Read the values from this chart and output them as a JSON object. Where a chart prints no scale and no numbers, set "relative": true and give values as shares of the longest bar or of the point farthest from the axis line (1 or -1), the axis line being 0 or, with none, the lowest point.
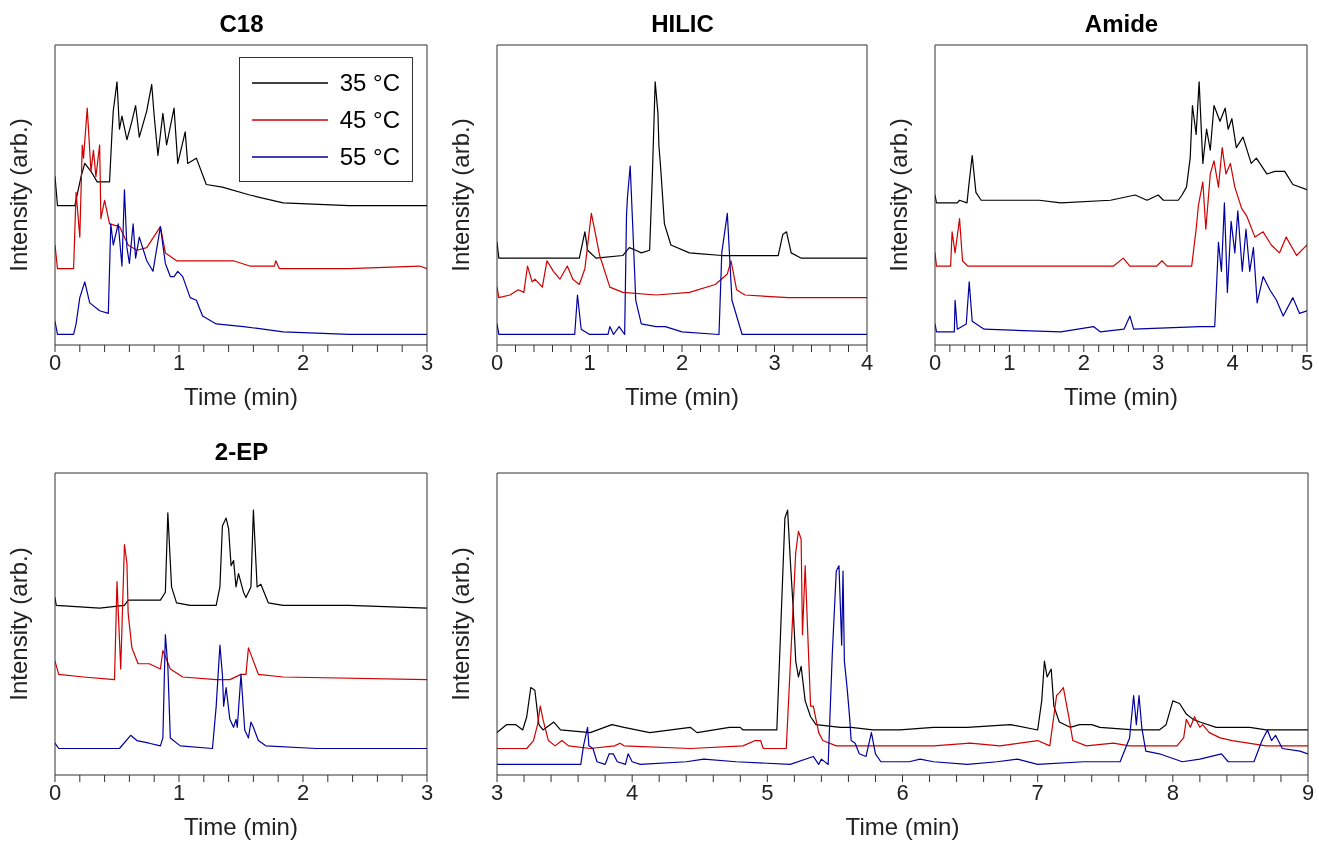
{
  "chart_data": [
    {
      "type": "line",
      "title": "C18",
      "xlabel": "Time (min)",
      "ylabel": "Intensity (arb.)",
      "relative": true,
      "tick_labels": "x",
      "legend": "top right",
      "xlim": [
        0,
        3
      ],
      "xticks": [
        0,
        {
          "value": 0.2,
          "label": null
        },
        {
          "value": 0.4,
          "label": null
        },
        {
          "value": 0.6,
          "label": null
        },
        {
          "value": 0.8,
          "label": null
        },
        1,
        {
          "value": 1.2,
          "label": null
        },
        {
          "value": 1.4,
          "label": null
        },
        {
          "value": 1.6,
          "label": null
        },
        {
          "value": 1.8,
          "label": null
        },
        2,
        {
          "value": 2.2,
          "label": null
        },
        {
          "value": 2.4,
          "label": null
        },
        {
          "value": 2.6,
          "label": null
        },
        {
          "value": 2.8,
          "label": null
        },
        3
      ],
      "series": [
        {
          "name": "35 °C",
          "color": "#000000",
          "x": [
            0,
            0.02,
            0.16,
            0.21,
            0.24,
            0.29,
            0.34,
            0.4,
            0.44,
            0.46,
            0.47,
            0.5,
            0.52,
            0.54,
            0.58,
            0.62,
            0.65,
            0.68,
            0.74,
            0.78,
            0.8,
            0.83,
            0.87,
            0.9,
            0.96,
            0.99,
            1.05,
            1.07,
            1.14,
            1.22,
            1.35,
            1.57,
            1.84,
            2.37,
            3.0
          ],
          "values": [
            0.64,
            0.53,
            0.53,
            0.64,
            0.69,
            0.66,
            0.62,
            0.62,
            0.62,
            0.81,
            0.89,
            1,
            0.82,
            0.87,
            0.78,
            0.85,
            0.91,
            0.79,
            0.89,
            0.99,
            0.87,
            0.72,
            0.88,
            0.76,
            0.9,
            0.69,
            0.81,
            0.69,
            0.71,
            0.61,
            0.6,
            0.57,
            0.54,
            0.53,
            0.53
          ]
        },
        {
          "name": "45 °C",
          "color": "#d00000",
          "x": [
            0,
            0.02,
            0.15,
            0.17,
            0.2,
            0.22,
            0.23,
            0.26,
            0.29,
            0.31,
            0.33,
            0.36,
            0.37,
            0.4,
            0.44,
            0.52,
            0.59,
            0.66,
            0.74,
            0.85,
            0.89,
            0.98,
            1.17,
            1.44,
            1.57,
            1.77,
            1.78,
            1.81,
            2.37,
            2.94,
            3.0
          ],
          "values": [
            0.38,
            0.29,
            0.29,
            0.58,
            0.41,
            0.76,
            0.71,
            0.9,
            0.66,
            0.74,
            0.64,
            0.76,
            0.48,
            0.55,
            0.46,
            0.45,
            0.38,
            0.36,
            0.37,
            0.45,
            0.35,
            0.32,
            0.32,
            0.32,
            0.3,
            0.3,
            0.32,
            0.29,
            0.29,
            0.3,
            0.29
          ]
        },
        {
          "name": "55 °C",
          "color": "#0000a0",
          "x": [
            0,
            0.02,
            0.15,
            0.17,
            0.2,
            0.24,
            0.28,
            0.36,
            0.43,
            0.45,
            0.47,
            0.51,
            0.54,
            0.56,
            0.58,
            0.6,
            0.63,
            0.65,
            0.68,
            0.74,
            0.79,
            0.85,
            0.89,
            0.93,
            0.96,
            0.99,
            1.03,
            1.09,
            1.14,
            1.19,
            1.3,
            1.52,
            1.84,
            2.37,
            3.0
          ],
          "values": [
            0.09,
            0.04,
            0.04,
            0.08,
            0.18,
            0.24,
            0.16,
            0.13,
            0.12,
            0.46,
            0.38,
            0.46,
            0.3,
            0.59,
            0.37,
            0.31,
            0.46,
            0.33,
            0.41,
            0.32,
            0.28,
            0.45,
            0.31,
            0.26,
            0.26,
            0.28,
            0.26,
            0.18,
            0.17,
            0.11,
            0.08,
            0.07,
            0.05,
            0.04,
            0.04
          ]
        }
      ]
    },
    {
      "type": "line",
      "title": "HILIC",
      "xlabel": "Time (min)",
      "ylabel": "Intensity (arb.)",
      "relative": true,
      "tick_labels": "x",
      "xlim": [
        0,
        4
      ],
      "xticks": [
        0,
        {
          "value": 0.2,
          "label": null
        },
        {
          "value": 0.4,
          "label": null
        },
        {
          "value": 0.6,
          "label": null
        },
        {
          "value": 0.8,
          "label": null
        },
        1,
        {
          "value": 1.2,
          "label": null
        },
        {
          "value": 1.4,
          "label": null
        },
        {
          "value": 1.6,
          "label": null
        },
        {
          "value": 1.8,
          "label": null
        },
        2,
        {
          "value": 2.2,
          "label": null
        },
        {
          "value": 2.4,
          "label": null
        },
        {
          "value": 2.6,
          "label": null
        },
        {
          "value": 2.8,
          "label": null
        },
        3,
        {
          "value": 3.2,
          "label": null
        },
        {
          "value": 3.4,
          "label": null
        },
        {
          "value": 3.6,
          "label": null
        },
        {
          "value": 3.8,
          "label": null
        },
        4
      ],
      "series": [
        {
          "color": "#000000",
          "x": [
            0,
            0.02,
            0.89,
            0.95,
            0.98,
            1.07,
            1.36,
            1.43,
            1.5,
            1.56,
            1.65,
            1.68,
            1.71,
            1.74,
            1.75,
            1.77,
            1.81,
            1.88,
            2.08,
            2.43,
            2.79,
            3.04,
            3.09,
            3.13,
            3.18,
            3.29,
            4.0
          ],
          "values": [
            0.39,
            0.33,
            0.33,
            0.43,
            0.36,
            0.33,
            0.34,
            0.37,
            0.36,
            0.35,
            0.36,
            0.65,
            1,
            0.88,
            0.76,
            0.67,
            0.46,
            0.38,
            0.35,
            0.34,
            0.34,
            0.34,
            0.42,
            0.43,
            0.35,
            0.33,
            0.33
          ]
        },
        {
          "color": "#d00000",
          "x": [
            0,
            0.02,
            0.14,
            0.23,
            0.29,
            0.33,
            0.38,
            0.41,
            0.49,
            0.54,
            0.61,
            0.68,
            0.76,
            0.82,
            0.89,
            0.95,
            1.02,
            1.06,
            1.11,
            1.22,
            1.36,
            1.72,
            2.08,
            2.36,
            2.49,
            2.53,
            2.59,
            2.68,
            3.15,
            4.0
          ],
          "values": [
            0.22,
            0.18,
            0.19,
            0.21,
            0.2,
            0.3,
            0.24,
            0.25,
            0.22,
            0.32,
            0.28,
            0.25,
            0.3,
            0.25,
            0.23,
            0.29,
            0.5,
            0.43,
            0.34,
            0.22,
            0.2,
            0.19,
            0.2,
            0.23,
            0.27,
            0.32,
            0.21,
            0.19,
            0.18,
            0.18
          ]
        },
        {
          "color": "#0000a0",
          "x": [
            0,
            0.02,
            0.84,
            0.87,
            0.91,
            1.0,
            1.2,
            1.22,
            1.26,
            1.32,
            1.38,
            1.4,
            1.41,
            1.44,
            1.47,
            1.5,
            1.56,
            1.72,
            1.82,
            2.0,
            2.4,
            2.43,
            2.49,
            2.54,
            2.65,
            4.0
          ],
          "values": [
            0.08,
            0.04,
            0.04,
            0.19,
            0.06,
            0.04,
            0.04,
            0.07,
            0.04,
            0.07,
            0.04,
            0.49,
            0.56,
            0.68,
            0.43,
            0.17,
            0.08,
            0.07,
            0.07,
            0.05,
            0.04,
            0.35,
            0.5,
            0.17,
            0.04,
            0.04
          ]
        }
      ]
    },
    {
      "type": "line",
      "title": "Amide",
      "xlabel": "Time (min)",
      "ylabel": "Intensity (arb.)",
      "relative": true,
      "tick_labels": "x",
      "xlim": [
        0,
        5
      ],
      "xticks": [
        0,
        {
          "value": 0.2,
          "label": null
        },
        {
          "value": 0.4,
          "label": null
        },
        {
          "value": 0.6,
          "label": null
        },
        {
          "value": 0.8,
          "label": null
        },
        1,
        {
          "value": 1.2,
          "label": null
        },
        {
          "value": 1.4,
          "label": null
        },
        {
          "value": 1.6,
          "label": null
        },
        {
          "value": 1.8,
          "label": null
        },
        2,
        {
          "value": 2.2,
          "label": null
        },
        {
          "value": 2.4,
          "label": null
        },
        {
          "value": 2.6,
          "label": null
        },
        {
          "value": 2.8,
          "label": null
        },
        3,
        {
          "value": 3.2,
          "label": null
        },
        {
          "value": 3.4,
          "label": null
        },
        {
          "value": 3.6,
          "label": null
        },
        {
          "value": 3.8,
          "label": null
        },
        4,
        {
          "value": 4.2,
          "label": null
        },
        {
          "value": 4.4,
          "label": null
        },
        {
          "value": 4.6,
          "label": null
        },
        {
          "value": 4.8,
          "label": null
        },
        5
      ],
      "series": [
        {
          "color": "#000000",
          "x": [
            0,
            0.02,
            0.3,
            0.33,
            0.43,
            0.46,
            0.5,
            0.55,
            0.62,
            1.02,
            1.4,
            1.69,
            2.36,
            2.69,
            2.85,
            3.0,
            3.07,
            3.27,
            3.32,
            3.38,
            3.43,
            3.46,
            3.51,
            3.55,
            3.6,
            3.65,
            3.7,
            3.75,
            3.83,
            3.9,
            3.94,
            3.99,
            4.05,
            4.14,
            4.25,
            4.32,
            4.46,
            4.57,
            4.7,
            4.81,
            5.0
          ],
          "values": [
            0.57,
            0.54,
            0.54,
            0.55,
            0.54,
            0.62,
            0.72,
            0.58,
            0.55,
            0.55,
            0.55,
            0.54,
            0.55,
            0.57,
            0.55,
            0.57,
            0.55,
            0.55,
            0.57,
            0.6,
            0.71,
            0.91,
            0.8,
            1,
            0.69,
            0.82,
            0.74,
            0.91,
            0.85,
            0.9,
            0.82,
            0.86,
            0.75,
            0.79,
            0.69,
            0.71,
            0.65,
            0.66,
            0.66,
            0.61,
            0.59
          ]
        },
        {
          "color": "#d00000",
          "x": [
            0,
            0.02,
            0.21,
            0.23,
            0.27,
            0.33,
            0.37,
            0.44,
            1.24,
            2.4,
            2.53,
            2.62,
            2.98,
            3.05,
            3.12,
            3.45,
            3.51,
            3.54,
            3.6,
            3.64,
            3.7,
            3.75,
            3.81,
            3.86,
            3.91,
            3.97,
            4.03,
            4.12,
            4.19,
            4.3,
            4.41,
            4.52,
            4.63,
            4.72,
            4.86,
            5.0
          ],
          "values": [
            0.35,
            0.3,
            0.3,
            0.43,
            0.35,
            0.48,
            0.32,
            0.3,
            0.3,
            0.3,
            0.33,
            0.3,
            0.3,
            0.32,
            0.3,
            0.3,
            0.44,
            0.53,
            0.62,
            0.44,
            0.65,
            0.7,
            0.6,
            0.75,
            0.65,
            0.69,
            0.6,
            0.52,
            0.49,
            0.41,
            0.43,
            0.38,
            0.35,
            0.41,
            0.34,
            0.38
          ]
        },
        {
          "color": "#0000a0",
          "x": [
            0,
            0.02,
            0.26,
            0.27,
            0.3,
            0.42,
            0.46,
            0.5,
            0.66,
            1.69,
            2.13,
            2.22,
            2.54,
            2.62,
            2.67,
            3.56,
            3.76,
            3.81,
            3.85,
            3.89,
            3.93,
            3.98,
            4.03,
            4.07,
            4.13,
            4.18,
            4.23,
            4.28,
            4.33,
            4.41,
            4.5,
            4.59,
            4.68,
            4.81,
            4.9,
            5.0
          ],
          "values": [
            0.08,
            0.05,
            0.05,
            0.17,
            0.06,
            0.08,
            0.24,
            0.09,
            0.06,
            0.05,
            0.07,
            0.05,
            0.06,
            0.11,
            0.06,
            0.07,
            0.07,
            0.39,
            0.28,
            0.54,
            0.2,
            0.47,
            0.35,
            0.51,
            0.28,
            0.44,
            0.28,
            0.37,
            0.16,
            0.26,
            0.21,
            0.17,
            0.11,
            0.18,
            0.12,
            0.13
          ]
        }
      ]
    },
    {
      "type": "line",
      "title": "2-EP",
      "xlabel": "Time (min)",
      "ylabel": "Intensity (arb.)",
      "relative": true,
      "tick_labels": "x",
      "xlim": [
        0,
        3
      ],
      "xticks": [
        0,
        {
          "value": 0.2,
          "label": null
        },
        {
          "value": 0.4,
          "label": null
        },
        {
          "value": 0.6,
          "label": null
        },
        {
          "value": 0.8,
          "label": null
        },
        1,
        {
          "value": 1.2,
          "label": null
        },
        {
          "value": 1.4,
          "label": null
        },
        {
          "value": 1.6,
          "label": null
        },
        {
          "value": 1.8,
          "label": null
        },
        2,
        {
          "value": 2.2,
          "label": null
        },
        {
          "value": 2.4,
          "label": null
        },
        {
          "value": 2.6,
          "label": null
        },
        {
          "value": 2.8,
          "label": null
        },
        3
      ],
      "series": [
        {
          "color": "#000000",
          "x": [
            0,
            0.01,
            0.36,
            0.56,
            0.59,
            0.71,
            0.85,
            0.89,
            0.91,
            0.94,
            0.98,
            1.09,
            1.3,
            1.33,
            1.35,
            1.38,
            1.4,
            1.42,
            1.44,
            1.46,
            1.48,
            1.52,
            1.54,
            1.58,
            1.6,
            1.63,
            1.66,
            1.72,
            1.84,
            2.37,
            3.0
          ],
          "values": [
            0.67,
            0.64,
            0.63,
            0.64,
            0.66,
            0.66,
            0.66,
            0.69,
            0.99,
            0.71,
            0.65,
            0.64,
            0.64,
            0.71,
            0.94,
            0.97,
            0.93,
            0.79,
            0.81,
            0.71,
            0.76,
            0.69,
            0.67,
            0.71,
            1,
            0.71,
            0.72,
            0.65,
            0.64,
            0.64,
            0.63
          ]
        },
        {
          "color": "#d00000",
          "x": [
            0,
            0.03,
            0.23,
            0.48,
            0.5,
            0.53,
            0.56,
            0.58,
            0.59,
            0.62,
            0.67,
            0.76,
            0.85,
            0.87,
            0.93,
            1.03,
            1.3,
            1.41,
            1.5,
            1.54,
            1.56,
            1.6,
            1.64,
            1.84,
            3.0
          ],
          "values": [
            0.43,
            0.38,
            0.37,
            0.36,
            0.73,
            0.4,
            0.87,
            0.8,
            0.61,
            0.48,
            0.42,
            0.42,
            0.4,
            0.47,
            0.4,
            0.37,
            0.36,
            0.36,
            0.38,
            0.38,
            0.48,
            0.43,
            0.38,
            0.37,
            0.36
          ]
        },
        {
          "color": "#0000a0",
          "x": [
            0,
            0.03,
            0.52,
            0.61,
            0.66,
            0.76,
            0.85,
            0.87,
            0.89,
            0.91,
            0.93,
            1.01,
            1.27,
            1.3,
            1.33,
            1.35,
            1.36,
            1.38,
            1.41,
            1.44,
            1.46,
            1.47,
            1.5,
            1.53,
            1.56,
            1.58,
            1.6,
            1.64,
            1.7,
            2.11,
            3.0
          ],
          "values": [
            0.12,
            0.1,
            0.1,
            0.15,
            0.13,
            0.12,
            0.11,
            0.14,
            0.53,
            0.41,
            0.14,
            0.11,
            0.1,
            0.26,
            0.49,
            0.38,
            0.26,
            0.33,
            0.21,
            0.18,
            0.21,
            0.18,
            0.38,
            0.17,
            0.14,
            0.2,
            0.18,
            0.13,
            0.11,
            0.1,
            0.1
          ]
        }
      ]
    },
    {
      "type": "line",
      "xlabel": "Time (min)",
      "ylabel": "Intensity (arb.)",
      "relative": true,
      "tick_labels": "x",
      "xlim": [
        3,
        9
      ],
      "xticks": [
        3,
        {
          "value": 3.2,
          "label": null
        },
        {
          "value": 3.4,
          "label": null
        },
        {
          "value": 3.6,
          "label": null
        },
        {
          "value": 3.8,
          "label": null
        },
        4,
        {
          "value": 4.2,
          "label": null
        },
        {
          "value": 4.4,
          "label": null
        },
        {
          "value": 4.6,
          "label": null
        },
        {
          "value": 4.8,
          "label": null
        },
        5,
        {
          "value": 5.2,
          "label": null
        },
        {
          "value": 5.4,
          "label": null
        },
        {
          "value": 5.6,
          "label": null
        },
        {
          "value": 5.8,
          "label": null
        },
        6,
        {
          "value": 6.2,
          "label": null
        },
        {
          "value": 6.4,
          "label": null
        },
        {
          "value": 6.6,
          "label": null
        },
        {
          "value": 6.8,
          "label": null
        },
        7,
        {
          "value": 7.2,
          "label": null
        },
        {
          "value": 7.4,
          "label": null
        },
        {
          "value": 7.6,
          "label": null
        },
        {
          "value": 7.8,
          "label": null
        },
        8,
        {
          "value": 8.2,
          "label": null
        },
        {
          "value": 8.4,
          "label": null
        },
        {
          "value": 8.6,
          "label": null
        },
        {
          "value": 8.8,
          "label": null
        },
        9
      ],
      "series": [
        {
          "color": "#000000",
          "x": [
            3.0,
            3.07,
            3.14,
            3.19,
            3.22,
            3.25,
            3.28,
            3.31,
            3.34,
            3.42,
            3.47,
            3.69,
            3.85,
            3.94,
            4.13,
            4.43,
            4.48,
            4.72,
            4.8,
            4.82,
            5.07,
            5.09,
            5.13,
            5.15,
            5.17,
            5.19,
            5.21,
            5.23,
            5.25,
            5.28,
            5.32,
            5.36,
            5.54,
            5.62,
            5.78,
            5.98,
            6.23,
            6.48,
            6.8,
            7.0,
            7.03,
            7.05,
            7.07,
            7.1,
            7.12,
            7.16,
            7.24,
            7.31,
            7.4,
            7.46,
            7.71,
            7.9,
            7.95,
            8.0,
            8.05,
            8.1,
            8.15,
            8.2,
            8.32,
            8.57,
            8.69,
            9.0
          ],
          "values": [
            0.16,
            0.19,
            0.19,
            0.17,
            0.22,
            0.33,
            0.32,
            0.19,
            0.17,
            0.2,
            0.17,
            0.16,
            0.19,
            0.18,
            0.16,
            0.18,
            0.16,
            0.18,
            0.18,
            0.17,
            0.17,
            0.43,
            0.97,
            1,
            0.81,
            0.64,
            0.43,
            0.37,
            0.41,
            0.28,
            0.22,
            0.19,
            0.18,
            0.18,
            0.17,
            0.17,
            0.18,
            0.18,
            0.19,
            0.17,
            0.28,
            0.43,
            0.37,
            0.4,
            0.26,
            0.2,
            0.18,
            0.19,
            0.19,
            0.18,
            0.17,
            0.17,
            0.19,
            0.28,
            0.27,
            0.23,
            0.21,
            0.2,
            0.18,
            0.18,
            0.17,
            0.17
          ]
        },
        {
          "color": "#d00000",
          "x": [
            3.0,
            3.22,
            3.27,
            3.3,
            3.32,
            3.34,
            3.38,
            3.43,
            3.48,
            3.53,
            3.69,
            3.87,
            3.91,
            3.94,
            4.43,
            4.82,
            4.91,
            4.95,
            4.97,
            5.14,
            5.18,
            5.21,
            5.23,
            5.25,
            5.26,
            5.28,
            5.3,
            5.32,
            5.34,
            5.38,
            5.41,
            5.51,
            5.66,
            5.91,
            6.23,
            6.5,
            6.72,
            7.0,
            7.09,
            7.14,
            7.16,
            7.19,
            7.23,
            7.26,
            7.36,
            7.56,
            7.68,
            8.03,
            8.08,
            8.1,
            8.13,
            8.16,
            8.2,
            8.22,
            8.27,
            8.35,
            8.44,
            8.69,
            9.0
          ],
          "values": [
            0.1,
            0.1,
            0.13,
            0.19,
            0.26,
            0.21,
            0.13,
            0.11,
            0.13,
            0.11,
            0.1,
            0.11,
            0.12,
            0.11,
            0.1,
            0.11,
            0.13,
            0.13,
            0.1,
            0.1,
            0.52,
            0.84,
            0.92,
            0.89,
            0.53,
            0.79,
            0.52,
            0.26,
            0.26,
            0.16,
            0.13,
            0.11,
            0.11,
            0.11,
            0.11,
            0.12,
            0.11,
            0.13,
            0.11,
            0.3,
            0.31,
            0.33,
            0.22,
            0.13,
            0.11,
            0.12,
            0.11,
            0.11,
            0.14,
            0.21,
            0.18,
            0.22,
            0.18,
            0.19,
            0.16,
            0.14,
            0.13,
            0.11,
            0.11
          ]
        },
        {
          "color": "#0000a0",
          "x": [
            3.0,
            3.62,
            3.64,
            3.67,
            3.68,
            3.71,
            3.74,
            3.8,
            3.83,
            3.86,
            3.89,
            3.95,
            3.97,
            4.0,
            4.06,
            4.4,
            4.53,
            4.77,
            5.17,
            5.34,
            5.38,
            5.4,
            5.45,
            5.48,
            5.51,
            5.53,
            5.55,
            5.56,
            5.57,
            5.59,
            5.61,
            5.62,
            5.65,
            5.68,
            5.73,
            5.77,
            5.8,
            5.84,
            6.05,
            6.13,
            6.23,
            6.48,
            6.7,
            6.85,
            7.0,
            7.34,
            7.61,
            7.68,
            7.71,
            7.73,
            7.75,
            7.77,
            7.8,
            7.9,
            8.07,
            8.2,
            8.36,
            8.41,
            8.6,
            8.66,
            8.7,
            8.73,
            8.76,
            8.81,
            8.94,
            9.0
          ],
          "values": [
            0.04,
            0.04,
            0.11,
            0.18,
            0.11,
            0.1,
            0.05,
            0.04,
            0.08,
            0.08,
            0.05,
            0.04,
            0.08,
            0.05,
            0.04,
            0.05,
            0.06,
            0.05,
            0.04,
            0.07,
            0.04,
            0.06,
            0.04,
            0.45,
            0.77,
            0.79,
            0.49,
            0.77,
            0.43,
            0.33,
            0.21,
            0.13,
            0.12,
            0.08,
            0.07,
            0.16,
            0.08,
            0.05,
            0.05,
            0.06,
            0.05,
            0.04,
            0.05,
            0.06,
            0.04,
            0.05,
            0.05,
            0.14,
            0.3,
            0.19,
            0.3,
            0.18,
            0.09,
            0.08,
            0.05,
            0.06,
            0.08,
            0.05,
            0.05,
            0.13,
            0.17,
            0.13,
            0.15,
            0.1,
            0.09,
            0.08
          ]
        }
      ]
    }
  ]
}
